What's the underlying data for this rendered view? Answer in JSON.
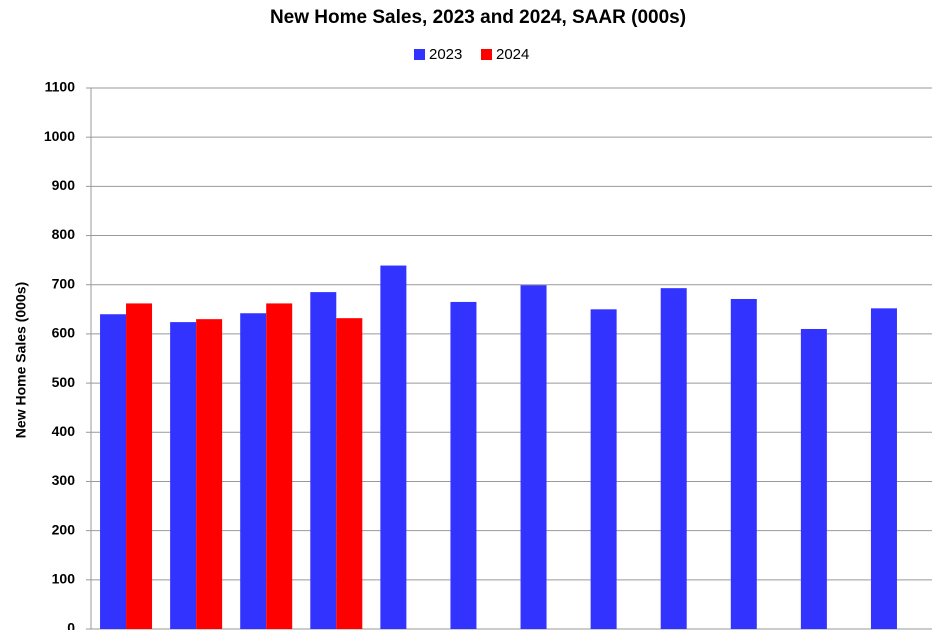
{
  "chart_data": {
    "type": "bar",
    "title": "New Home Sales,  2023 and 2024, SAAR (000s)",
    "y_label": "New Home Sales (000s)",
    "categories": [
      null,
      null,
      null,
      null,
      null,
      null,
      null,
      null,
      null,
      null,
      null,
      null
    ],
    "series": [
      {
        "name": "2023",
        "color": "#3333ff",
        "values": [
          640,
          624,
          642,
          685,
          739,
          665,
          699,
          650,
          693,
          671,
          610,
          652
        ]
      },
      {
        "name": "2024",
        "color": "#ff0000",
        "values": [
          662,
          630,
          662,
          632,
          null,
          null,
          null,
          null,
          null,
          null,
          null,
          null
        ]
      }
    ],
    "ylim": [
      0,
      1100
    ],
    "yticks": [
      0,
      100,
      200,
      300,
      400,
      500,
      600,
      700,
      800,
      900,
      1000,
      1100
    ],
    "grid": true,
    "legend": "top"
  }
}
